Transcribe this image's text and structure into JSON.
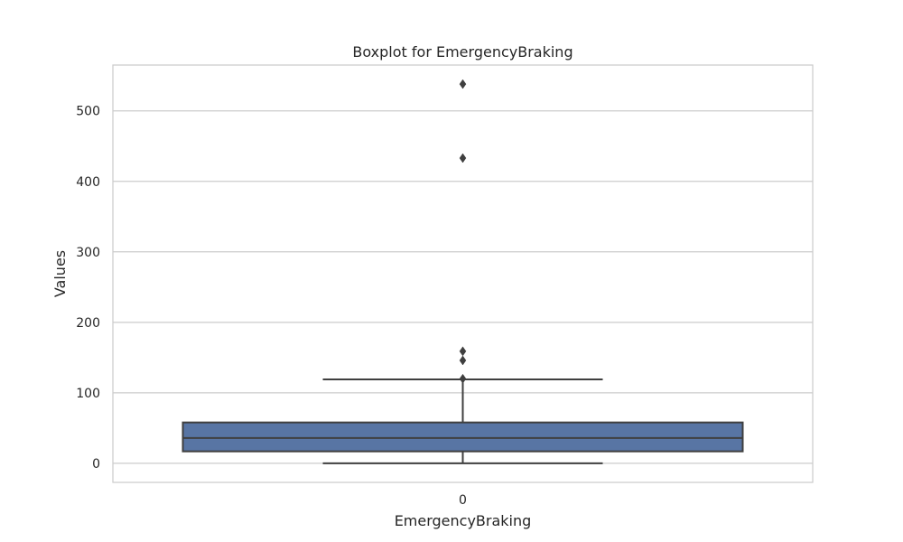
{
  "chart_data": {
    "type": "boxplot",
    "title": "Boxplot for EmergencyBraking",
    "xlabel": "EmergencyBraking",
    "ylabel": "Values",
    "categories": [
      "0"
    ],
    "ylim": [
      -27,
      565
    ],
    "yticks": [
      0,
      100,
      200,
      300,
      400,
      500
    ],
    "grid": true,
    "box": {
      "min": 0,
      "q1": 17,
      "median": 36,
      "q3": 58,
      "max": 119,
      "outliers": [
        120,
        146,
        159,
        433,
        538
      ]
    },
    "box_color": "#5875a4",
    "line_color": "#3f3f3f",
    "grid_color": "#cccccc"
  }
}
